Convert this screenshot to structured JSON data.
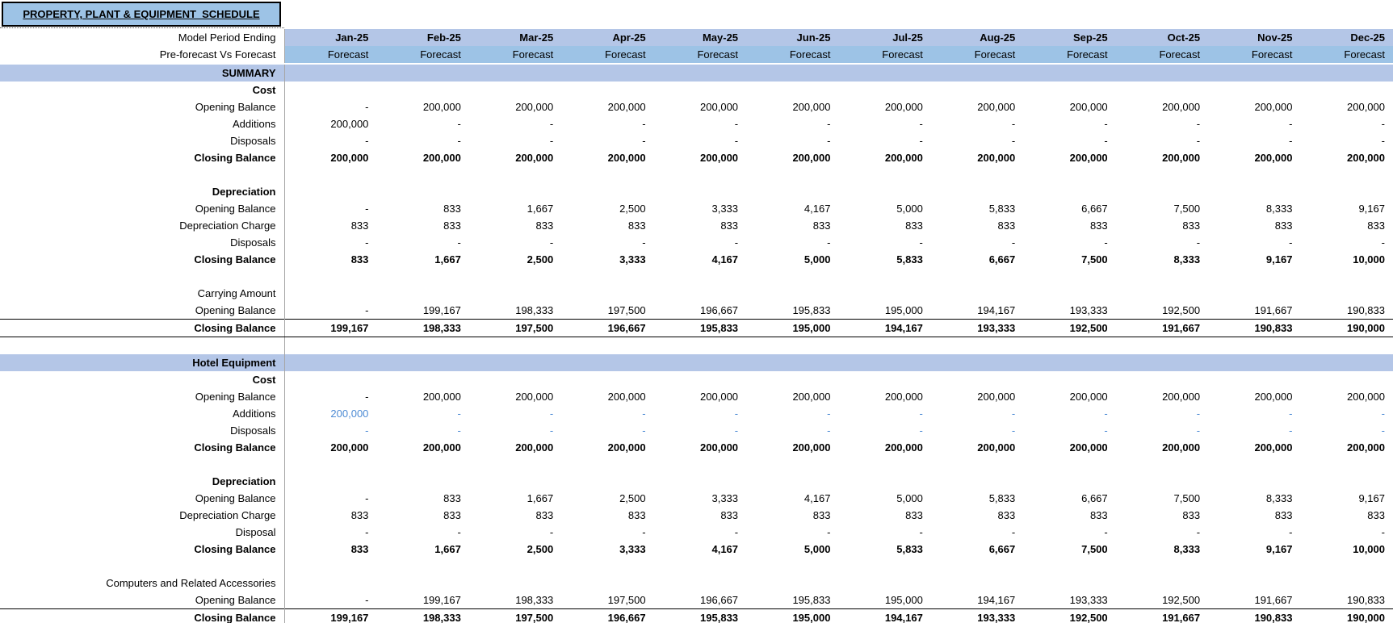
{
  "title": "PROPERTY, PLANT & EQUIPMENT  SCHEDULE",
  "colors": {
    "band_lavender": "#B4C6E7",
    "band_blue": "#9DC3E6",
    "input_text": "#4E8BD4",
    "grid_divider": "#A6A6A6"
  },
  "months": [
    "Jan-25",
    "Feb-25",
    "Mar-25",
    "Apr-25",
    "May-25",
    "Jun-25",
    "Jul-25",
    "Aug-25",
    "Sep-25",
    "Oct-25",
    "Nov-25",
    "Dec-25"
  ],
  "header": {
    "period_label": "Model Period Ending",
    "forecast_label": "Pre-forecast Vs Forecast",
    "forecast_value": "Forecast"
  },
  "rows": [
    {
      "type": "band",
      "label": "SUMMARY"
    },
    {
      "type": "subhead",
      "label": "Cost"
    },
    {
      "type": "row",
      "label": "Opening Balance",
      "values": [
        "-",
        "200,000",
        "200,000",
        "200,000",
        "200,000",
        "200,000",
        "200,000",
        "200,000",
        "200,000",
        "200,000",
        "200,000",
        "200,000"
      ]
    },
    {
      "type": "row",
      "label": "Additions",
      "values": [
        "200,000",
        "-",
        "-",
        "-",
        "-",
        "-",
        "-",
        "-",
        "-",
        "-",
        "-",
        "-"
      ]
    },
    {
      "type": "row",
      "label": "Disposals",
      "values": [
        "-",
        "-",
        "-",
        "-",
        "-",
        "-",
        "-",
        "-",
        "-",
        "-",
        "-",
        "-"
      ]
    },
    {
      "type": "total",
      "label": "Closing Balance",
      "values": [
        "200,000",
        "200,000",
        "200,000",
        "200,000",
        "200,000",
        "200,000",
        "200,000",
        "200,000",
        "200,000",
        "200,000",
        "200,000",
        "200,000"
      ]
    },
    {
      "type": "blank"
    },
    {
      "type": "subhead",
      "label": "Depreciation"
    },
    {
      "type": "row",
      "label": "Opening Balance",
      "values": [
        "-",
        "833",
        "1,667",
        "2,500",
        "3,333",
        "4,167",
        "5,000",
        "5,833",
        "6,667",
        "7,500",
        "8,333",
        "9,167"
      ]
    },
    {
      "type": "row",
      "label": "Depreciation Charge",
      "values": [
        "833",
        "833",
        "833",
        "833",
        "833",
        "833",
        "833",
        "833",
        "833",
        "833",
        "833",
        "833"
      ]
    },
    {
      "type": "row",
      "label": "Disposals",
      "values": [
        "-",
        "-",
        "-",
        "-",
        "-",
        "-",
        "-",
        "-",
        "-",
        "-",
        "-",
        "-"
      ]
    },
    {
      "type": "total",
      "label": "Closing Balance",
      "values": [
        "833",
        "1,667",
        "2,500",
        "3,333",
        "4,167",
        "5,000",
        "5,833",
        "6,667",
        "7,500",
        "8,333",
        "9,167",
        "10,000"
      ]
    },
    {
      "type": "blank"
    },
    {
      "type": "label",
      "label": "Carrying Amount"
    },
    {
      "type": "row",
      "label": "Opening Balance",
      "values": [
        "-",
        "199,167",
        "198,333",
        "197,500",
        "196,667",
        "195,833",
        "195,000",
        "194,167",
        "193,333",
        "192,500",
        "191,667",
        "190,833"
      ]
    },
    {
      "type": "grandtotal",
      "label": "Closing Balance",
      "values": [
        "199,167",
        "198,333",
        "197,500",
        "196,667",
        "195,833",
        "195,000",
        "194,167",
        "193,333",
        "192,500",
        "191,667",
        "190,833",
        "190,000"
      ]
    },
    {
      "type": "blank"
    },
    {
      "type": "band",
      "label": "Hotel Equipment"
    },
    {
      "type": "subhead",
      "label": "Cost"
    },
    {
      "type": "row",
      "label": "Opening Balance",
      "values": [
        "-",
        "200,000",
        "200,000",
        "200,000",
        "200,000",
        "200,000",
        "200,000",
        "200,000",
        "200,000",
        "200,000",
        "200,000",
        "200,000"
      ]
    },
    {
      "type": "row",
      "label": "Additions",
      "input": true,
      "values": [
        "200,000",
        "-",
        "-",
        "-",
        "-",
        "-",
        "-",
        "-",
        "-",
        "-",
        "-",
        "-"
      ]
    },
    {
      "type": "row",
      "label": "Disposals",
      "input": true,
      "values": [
        "-",
        "-",
        "-",
        "-",
        "-",
        "-",
        "-",
        "-",
        "-",
        "-",
        "-",
        "-"
      ]
    },
    {
      "type": "total",
      "label": "Closing Balance",
      "values": [
        "200,000",
        "200,000",
        "200,000",
        "200,000",
        "200,000",
        "200,000",
        "200,000",
        "200,000",
        "200,000",
        "200,000",
        "200,000",
        "200,000"
      ]
    },
    {
      "type": "blank"
    },
    {
      "type": "subhead",
      "label": "Depreciation"
    },
    {
      "type": "row",
      "label": "Opening Balance",
      "values": [
        "-",
        "833",
        "1,667",
        "2,500",
        "3,333",
        "4,167",
        "5,000",
        "5,833",
        "6,667",
        "7,500",
        "8,333",
        "9,167"
      ]
    },
    {
      "type": "row",
      "label": "Depreciation Charge",
      "values": [
        "833",
        "833",
        "833",
        "833",
        "833",
        "833",
        "833",
        "833",
        "833",
        "833",
        "833",
        "833"
      ]
    },
    {
      "type": "row",
      "label": "Disposal",
      "values": [
        "-",
        "-",
        "-",
        "-",
        "-",
        "-",
        "-",
        "-",
        "-",
        "-",
        "-",
        "-"
      ]
    },
    {
      "type": "total",
      "label": "Closing Balance",
      "values": [
        "833",
        "1,667",
        "2,500",
        "3,333",
        "4,167",
        "5,000",
        "5,833",
        "6,667",
        "7,500",
        "8,333",
        "9,167",
        "10,000"
      ]
    },
    {
      "type": "blank"
    },
    {
      "type": "label",
      "label": "Computers and Related Accessories"
    },
    {
      "type": "row",
      "label": "Opening Balance",
      "values": [
        "-",
        "199,167",
        "198,333",
        "197,500",
        "196,667",
        "195,833",
        "195,000",
        "194,167",
        "193,333",
        "192,500",
        "191,667",
        "190,833"
      ]
    },
    {
      "type": "grandtotal",
      "label": "Closing Balance",
      "values": [
        "199,167",
        "198,333",
        "197,500",
        "196,667",
        "195,833",
        "195,000",
        "194,167",
        "193,333",
        "192,500",
        "191,667",
        "190,833",
        "190,000"
      ]
    }
  ]
}
